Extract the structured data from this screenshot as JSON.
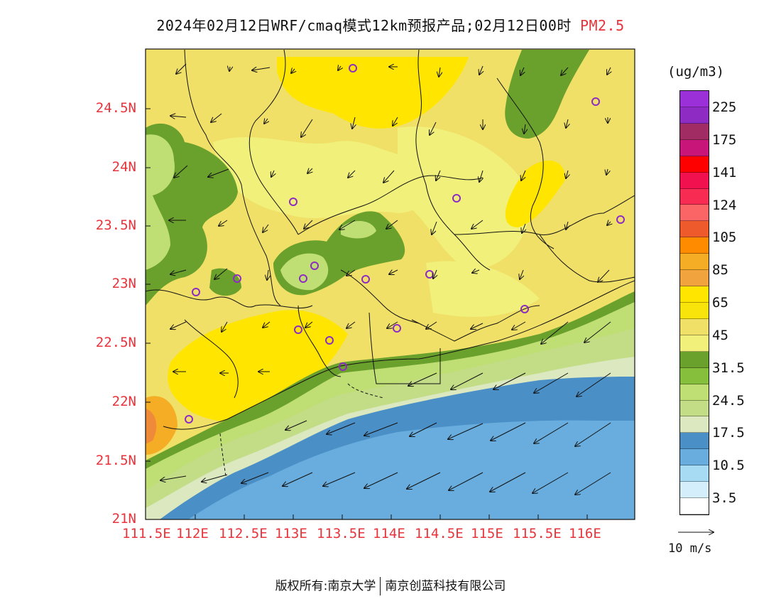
{
  "header": {
    "title": "2024年02月12日WRF/cmaq模式12km预报产品;02月12日00时",
    "pollutant": "PM2.5"
  },
  "axes": {
    "lat_labels": [
      "24.5N",
      "24N",
      "23.5N",
      "23N",
      "22.5N",
      "22N",
      "21.5N",
      "21N"
    ],
    "lon_labels": [
      "111.5E",
      "112E",
      "112.5E",
      "113E",
      "113.5E",
      "114E",
      "114.5E",
      "115E",
      "115.5E",
      "116E"
    ]
  },
  "colorbar": {
    "units": "(ug/m3)",
    "colors": [
      "#9b30d9",
      "#8d2bc3",
      "#a12c63",
      "#c8157a",
      "#ff0000",
      "#f0114e",
      "#f82b52",
      "#fb6565",
      "#ee5a2b",
      "#ff8c00",
      "#f5ad26",
      "#f1a33d",
      "#ffe500",
      "#f8e30a",
      "#f0e068",
      "#f0f07a",
      "#6aa02c",
      "#86bf3b",
      "#bfdf75",
      "#c3dc86",
      "#dbe8c0",
      "#4b8fc7",
      "#68addd",
      "#a6dbf3",
      "#d4eefb",
      "#ffffff"
    ],
    "labels": [
      "225",
      "175",
      "141",
      "124",
      "105",
      "85",
      "65",
      "45",
      "31.5",
      "24.5",
      "17.5",
      "10.5",
      "3.5"
    ]
  },
  "wind_legend": {
    "label": "10 m/s"
  },
  "footer": {
    "copyright": "版权所有:南京大学",
    "company": "南京创蓝科技有限公司"
  }
}
